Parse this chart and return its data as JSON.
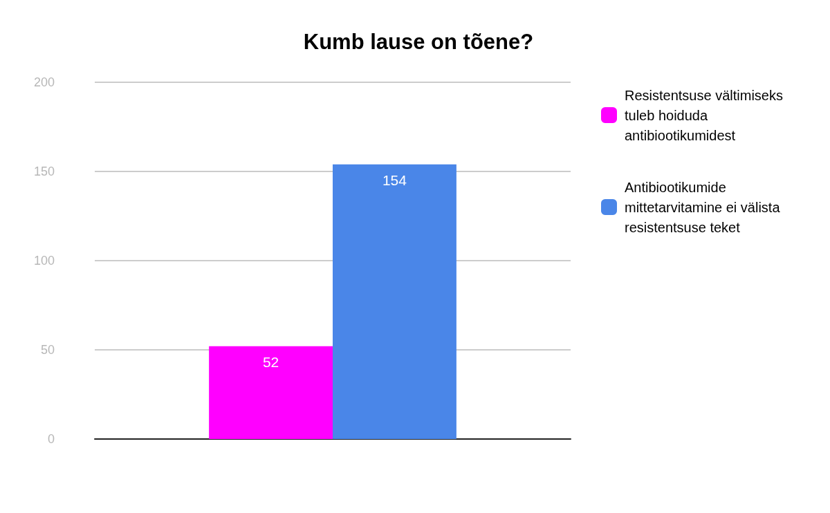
{
  "chart_data": {
    "type": "bar",
    "title": "Kumb lause on tõene?",
    "categories": [
      null
    ],
    "series": [
      {
        "name": "Resistentsuse vältimiseks tuleb hoiduda antibiootikumidest",
        "color": "#ff00ff",
        "values": [
          52
        ]
      },
      {
        "name": "Antibiootikumide mittetarvitamine ei välista resistentsuse teket",
        "color": "#4a86e8",
        "values": [
          154
        ]
      }
    ],
    "ylim": [
      0,
      200
    ],
    "yticks": [
      0,
      50,
      100,
      150,
      200
    ],
    "grid": "y",
    "legend": "top right",
    "data_labels": true,
    "tick_labels": "y"
  }
}
